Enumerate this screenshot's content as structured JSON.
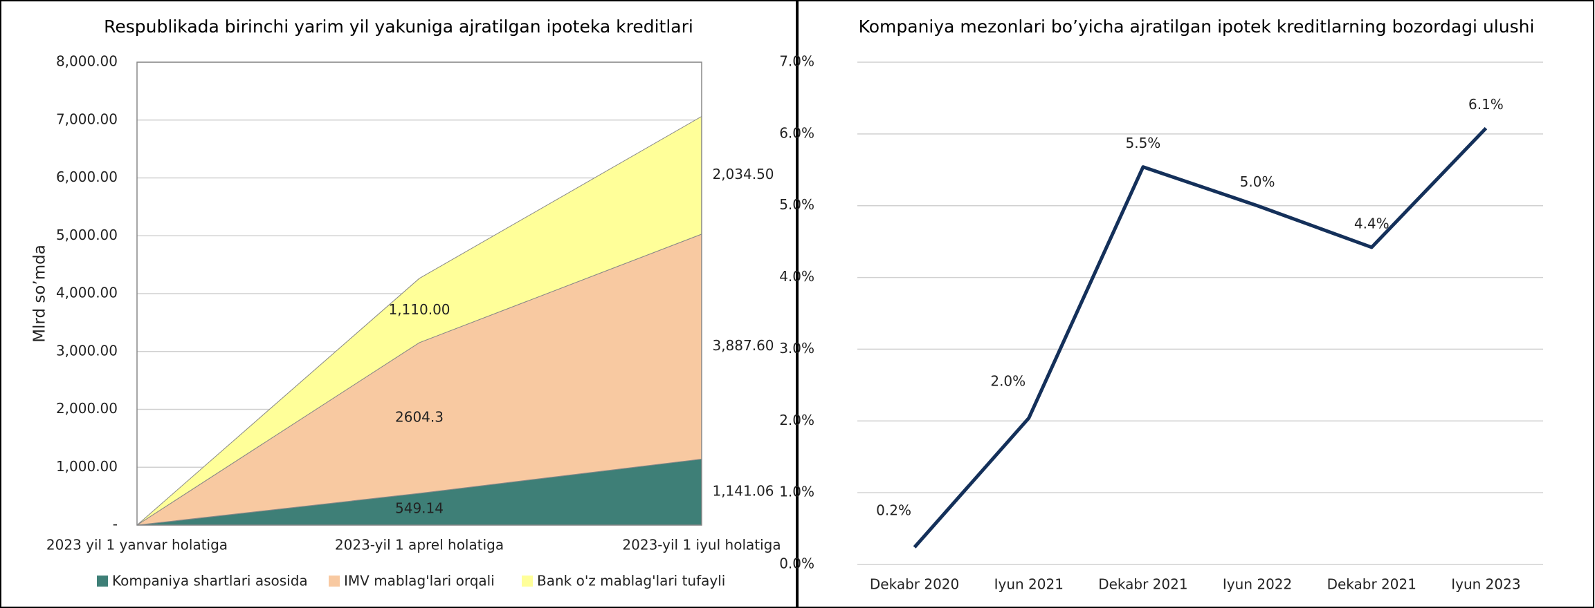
{
  "chart_data": [
    {
      "type": "stacked_area",
      "title": "Respublikada birinchi yarim yil yakuniga ajratilgan ipoteka kreditlari",
      "y_label": "Mlrd so’mda",
      "categories": [
        "2023 yil 1 yanvar holatiga",
        "2023-yil 1 aprel holatiga",
        "2023-yil 1 iyul holatiga"
      ],
      "series": [
        {
          "name": "Kompaniya shartlari asosida",
          "color": "#3e7f77",
          "values": [
            0,
            549.14,
            1141.06
          ],
          "value_labels": [
            null,
            "549.14",
            "1,141.06"
          ]
        },
        {
          "name": "IMV mablag'lari orqali",
          "color": "#f8c9a1",
          "values": [
            0,
            2604.3,
            3887.6
          ],
          "value_labels": [
            null,
            "2604.3",
            "3,887.60"
          ]
        },
        {
          "name": "Bank o'z mablag'lari tufayli",
          "color": "#ffff99",
          "values": [
            0,
            1110.0,
            2034.5
          ],
          "value_labels": [
            null,
            "1,110.00",
            "2,034.50"
          ]
        }
      ],
      "ylim": [
        0,
        8000
      ],
      "yticks": [
        {
          "value": 0,
          "label": "-"
        },
        {
          "value": 1000,
          "label": "1,000.00"
        },
        {
          "value": 2000,
          "label": "2,000.00"
        },
        {
          "value": 3000,
          "label": "3,000.00"
        },
        {
          "value": 4000,
          "label": "4,000.00"
        },
        {
          "value": 5000,
          "label": "5,000.00"
        },
        {
          "value": 6000,
          "label": "6,000.00"
        },
        {
          "value": 7000,
          "label": "7,000.00"
        },
        {
          "value": 8000,
          "label": "8,000.00"
        }
      ],
      "grid": true,
      "legend": "bottom"
    },
    {
      "type": "line",
      "title": "Kompaniya mezonlari bo’yicha ajratilgan ipotek kreditlarning bozordagi ulushi",
      "categories": [
        "Dekabr 2020",
        "Iyun 2021",
        "Dekabr 2021",
        "Iyun 2022",
        "Dekabr 2021",
        "Iyun 2023"
      ],
      "color": "#14305a",
      "values": [
        0.24,
        2.04,
        5.54,
        5.0,
        4.42,
        6.08
      ],
      "value_labels": [
        "0.2%",
        "2.0%",
        "5.5%",
        "5.0%",
        "4.4%",
        "6.1%"
      ],
      "ylim": [
        0,
        7
      ],
      "yticks": [
        {
          "value": 0,
          "label": "0.0%"
        },
        {
          "value": 1,
          "label": "1.0%"
        },
        {
          "value": 2,
          "label": "2.0%"
        },
        {
          "value": 3,
          "label": "3.0%"
        },
        {
          "value": 4,
          "label": "4.0%"
        },
        {
          "value": 5,
          "label": "5.0%"
        },
        {
          "value": 6,
          "label": "6.0%"
        },
        {
          "value": 7,
          "label": "7.0%"
        }
      ],
      "grid": true
    }
  ]
}
